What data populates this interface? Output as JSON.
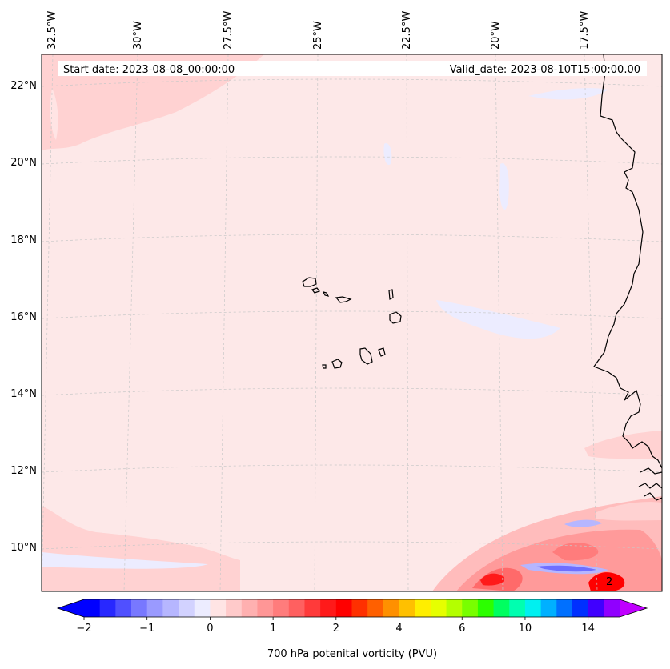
{
  "map": {
    "start_date": "Start date: 2023-08-08_00:00:00",
    "valid_date": "Valid_date: 2023-08-10T15:00:00.00",
    "lon_labels": [
      "32.5°W",
      "30°W",
      "27.5°W",
      "25°W",
      "22.5°W",
      "20°W",
      "17.5°W"
    ],
    "lat_labels": [
      "22°N",
      "20°N",
      "18°N",
      "16°N",
      "14°N",
      "12°N",
      "10°N"
    ],
    "contour_label": "2",
    "background_color": "#fde8e8",
    "coast_color": "#000000"
  },
  "colorbar": {
    "title": "700 hPa potenital vorticity (PVU)",
    "tick_labels": [
      "−2",
      "−1",
      "0",
      "1",
      "2",
      "4",
      "6",
      "10",
      "14"
    ],
    "colors": [
      "#0000ff",
      "#2828ff",
      "#5050ff",
      "#7878ff",
      "#9a9aff",
      "#b6b6ff",
      "#d2d2ff",
      "#ececff",
      "#ffe4e4",
      "#ffcaca",
      "#ffb0b0",
      "#ff9696",
      "#ff7c7c",
      "#ff6060",
      "#ff3a3a",
      "#ff1a1a",
      "#ff0000",
      "#ff3000",
      "#ff6000",
      "#ff9000",
      "#ffc000",
      "#ffee00",
      "#e6ff00",
      "#b4ff00",
      "#78ff00",
      "#2cff00",
      "#00ff60",
      "#00ffb0",
      "#00f0f0",
      "#00b0ff",
      "#0070ff",
      "#0030ff",
      "#4000ff",
      "#9000ff"
    ],
    "under_color": "#0000ff",
    "over_color": "#c000ff"
  }
}
